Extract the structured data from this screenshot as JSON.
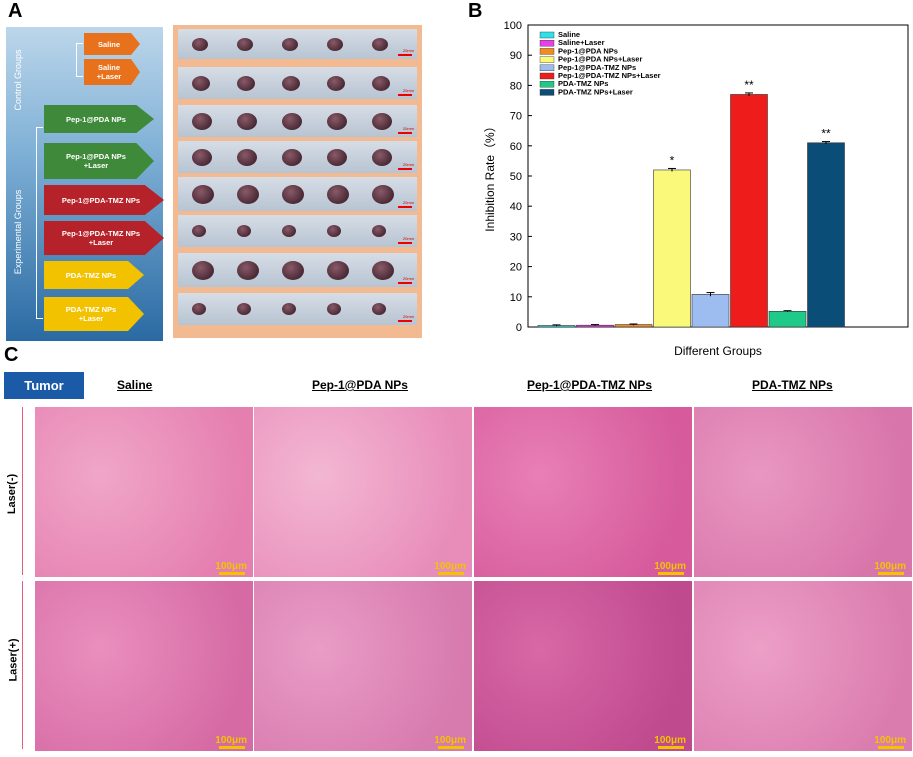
{
  "panel_letters": {
    "a": "A",
    "b": "B",
    "c": "C"
  },
  "panel_a": {
    "control_groups_label": "Control Groups",
    "experimental_groups_label": "Experimental Groups",
    "arrows": [
      {
        "label": "Saline",
        "color": "#e8711c"
      },
      {
        "label": "Saline\n+Laser",
        "color": "#e8711c"
      },
      {
        "label": "Pep-1@PDA NPs",
        "color": "#3f8a3a"
      },
      {
        "label": "Pep-1@PDA NPs\n+Laser",
        "color": "#3f8a3a"
      },
      {
        "label": "Pep-1@PDA-TMZ NPs",
        "color": "#b5222a"
      },
      {
        "label": "Pep-1@PDA-TMZ NPs\n+Laser",
        "color": "#b5222a"
      },
      {
        "label": "PDA-TMZ NPs",
        "color": "#f2c200"
      },
      {
        "label": "PDA-TMZ NPs\n+Laser",
        "color": "#f2c200"
      }
    ],
    "scale_label": "20mm"
  },
  "chart_data": {
    "type": "bar",
    "xlabel": "Different Groups",
    "ylabel": "Inhibition Rate（%）",
    "ylim": [
      0,
      100
    ],
    "yticks": [
      0,
      10,
      20,
      30,
      40,
      50,
      60,
      70,
      80,
      90,
      100
    ],
    "legend_position": "top-left",
    "series": [
      {
        "name": "Saline",
        "value": 0.5,
        "error": 0.2,
        "color": "#33e0e8",
        "annotation": ""
      },
      {
        "name": "Saline+Laser",
        "value": 0.6,
        "error": 0.2,
        "color": "#e640e6",
        "annotation": ""
      },
      {
        "name": "Pep-1@PDA NPs",
        "value": 0.8,
        "error": 0.2,
        "color": "#f58a1f",
        "annotation": ""
      },
      {
        "name": "Pep-1@PDA NPs+Laser",
        "value": 52,
        "error": 0.5,
        "color": "#fbf97a",
        "annotation": "*"
      },
      {
        "name": "Pep-1@PDA-TMZ NPs",
        "value": 10.8,
        "error": 0.6,
        "color": "#9dbdf0",
        "annotation": ""
      },
      {
        "name": "Pep-1@PDA-TMZ NPs+Laser",
        "value": 77,
        "error": 0.5,
        "color": "#ef1c1c",
        "annotation": "**"
      },
      {
        "name": "PDA-TMZ NPs",
        "value": 5.2,
        "error": 0.2,
        "color": "#1fc98a",
        "annotation": ""
      },
      {
        "name": "PDA-TMZ NPs+Laser",
        "value": 61,
        "error": 0.4,
        "color": "#0a4e78",
        "annotation": "**"
      }
    ]
  },
  "panel_c": {
    "badge": "Tumor",
    "columns": [
      "Saline",
      "Pep-1@PDA NPs",
      "Pep-1@PDA-TMZ NPs",
      "PDA-TMZ NPs"
    ],
    "rows": [
      "Laser(-)",
      "Laser(+)"
    ],
    "scale_label": "100μm"
  }
}
